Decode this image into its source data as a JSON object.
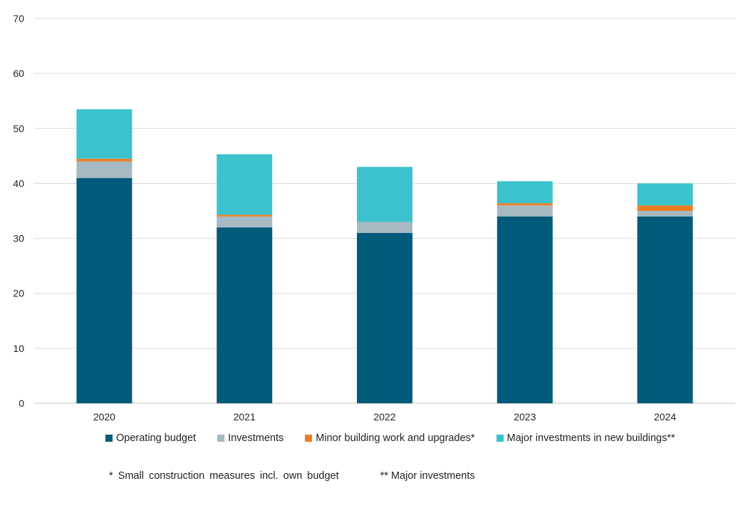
{
  "chart_data": {
    "type": "bar",
    "stacked": true,
    "categories": [
      "2020",
      "2021",
      "2022",
      "2023",
      "2024"
    ],
    "series": [
      {
        "name": "Operating budget",
        "color": "#005a7a",
        "values": [
          41,
          32,
          31,
          34,
          34
        ]
      },
      {
        "name": "Investments",
        "color": "#a7b9c3",
        "values": [
          3,
          2,
          2,
          2,
          1
        ]
      },
      {
        "name": "Minor building work and upgrades*",
        "color": "#ee7d22",
        "values": [
          0.5,
          0.3,
          0,
          0.4,
          1
        ]
      },
      {
        "name": "Major investments in new buildings**",
        "color": "#3bc2cd",
        "values": [
          9,
          11,
          10,
          4,
          4
        ]
      }
    ],
    "ylim": [
      0,
      70
    ],
    "yticks": [
      "0",
      "10",
      "20",
      "30",
      "40",
      "50",
      "60",
      "70"
    ],
    "grid": true,
    "legend": "bottom",
    "footnotes": [
      "* Small construction  measures incl. own budget",
      "** Major investments"
    ]
  }
}
